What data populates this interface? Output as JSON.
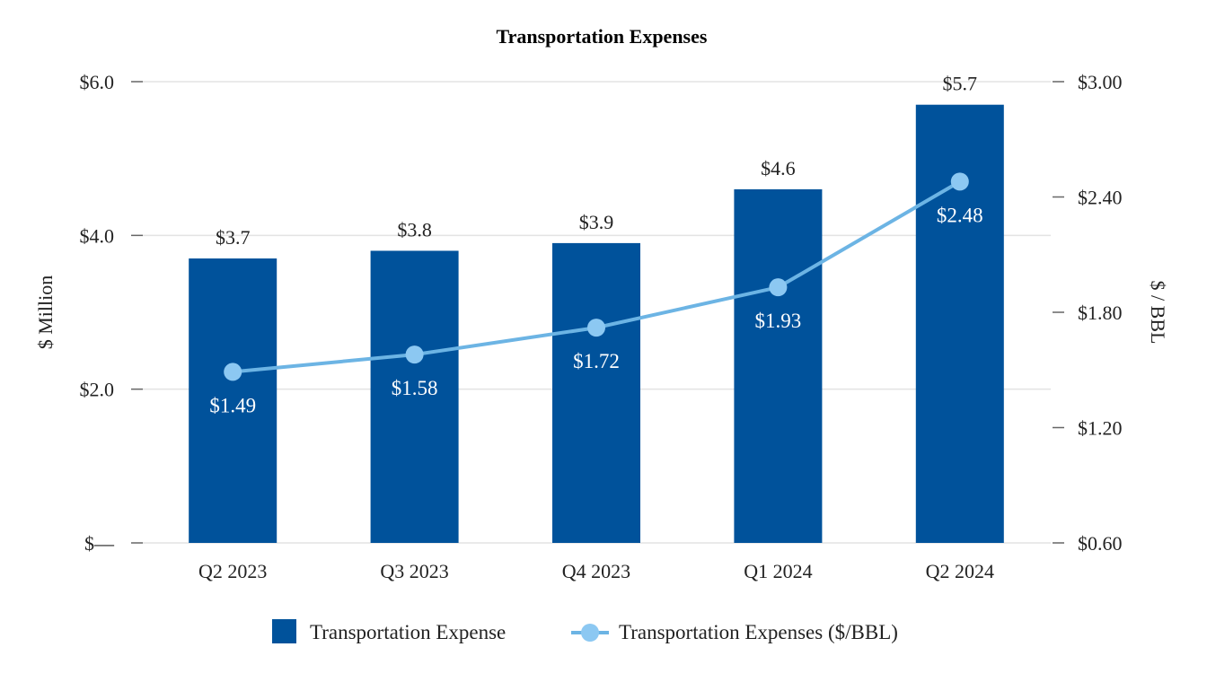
{
  "chart_data": {
    "type": "bar",
    "title": "Transportation Expenses",
    "categories": [
      "Q2 2023",
      "Q3 2023",
      "Q4 2023",
      "Q1 2024",
      "Q2 2024"
    ],
    "series": [
      {
        "name": "Transportation Expense",
        "type": "bar",
        "axis": "left",
        "values": [
          3.7,
          3.8,
          3.9,
          4.6,
          5.7
        ],
        "labels": [
          "$3.7",
          "$3.8",
          "$3.9",
          "$4.6",
          "$5.7"
        ],
        "color": "#00529B"
      },
      {
        "name": "Transportation Expenses ($/BBL)",
        "type": "line",
        "axis": "right",
        "values": [
          1.49,
          1.58,
          1.72,
          1.93,
          2.48
        ],
        "labels": [
          "$1.49",
          "$1.58",
          "$1.72",
          "$1.93",
          "$2.48"
        ],
        "color": "#6CB4E4",
        "marker_color": "#8CC8F2"
      }
    ],
    "ylabel": "$ Million",
    "y2label": "$ / BBL",
    "ylim": [
      0,
      6
    ],
    "y2lim": [
      0.6,
      3.0
    ],
    "yticks": [
      0,
      2,
      4,
      6
    ],
    "ytick_labels": [
      "$—",
      "$2.0",
      "$4.0",
      "$6.0"
    ],
    "y2ticks": [
      0.6,
      1.2,
      1.8,
      2.4,
      3.0
    ],
    "y2tick_labels": [
      "$0.60",
      "$1.20",
      "$1.80",
      "$2.40",
      "$3.00"
    ],
    "grid": true,
    "legend_position": "bottom"
  }
}
